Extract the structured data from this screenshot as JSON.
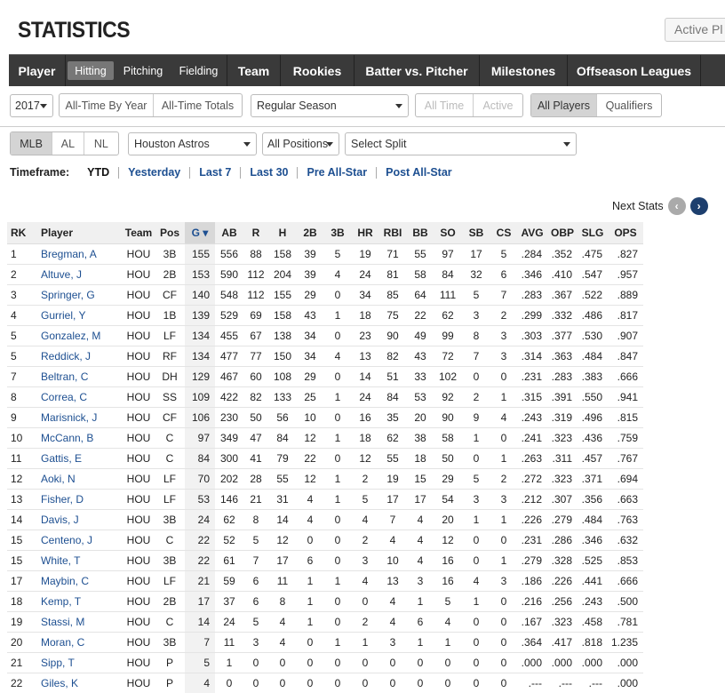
{
  "page_title": "STATISTICS",
  "active_players_label": "Active Pl",
  "nav": {
    "main_left": "Player",
    "sub_tabs": [
      "Hitting",
      "Pitching",
      "Fielding"
    ],
    "main_tabs": [
      "Team",
      "Rookies",
      "Batter vs. Pitcher",
      "Milestones",
      "Offseason Leagues"
    ]
  },
  "controls": {
    "season": "2017",
    "all_time_by_year": "All-Time By Year",
    "all_time_totals": "All-Time Totals",
    "game_type": "Regular Season",
    "all_time": "All Time",
    "active": "Active",
    "all_players": "All Players",
    "qualifiers": "Qualifiers",
    "mlb": "MLB",
    "al": "AL",
    "nl": "NL",
    "team": "Houston Astros",
    "positions": "All Positions",
    "split": "Select Split"
  },
  "timeframe": {
    "label": "Timeframe:",
    "options": [
      "YTD",
      "Yesterday",
      "Last 7",
      "Last 30",
      "Pre All-Star",
      "Post All-Star"
    ]
  },
  "next_stats": "Next Stats",
  "table": {
    "headers": [
      "RK",
      "Player",
      "Team",
      "Pos",
      "G ▾",
      "AB",
      "R",
      "H",
      "2B",
      "3B",
      "HR",
      "RBI",
      "BB",
      "SO",
      "SB",
      "CS",
      "AVG",
      "OBP",
      "SLG",
      "OPS"
    ],
    "rows": [
      [
        "1",
        "Bregman, A",
        "HOU",
        "3B",
        "155",
        "556",
        "88",
        "158",
        "39",
        "5",
        "19",
        "71",
        "55",
        "97",
        "17",
        "5",
        ".284",
        ".352",
        ".475",
        ".827"
      ],
      [
        "2",
        "Altuve, J",
        "HOU",
        "2B",
        "153",
        "590",
        "112",
        "204",
        "39",
        "4",
        "24",
        "81",
        "58",
        "84",
        "32",
        "6",
        ".346",
        ".410",
        ".547",
        ".957"
      ],
      [
        "3",
        "Springer, G",
        "HOU",
        "CF",
        "140",
        "548",
        "112",
        "155",
        "29",
        "0",
        "34",
        "85",
        "64",
        "111",
        "5",
        "7",
        ".283",
        ".367",
        ".522",
        ".889"
      ],
      [
        "4",
        "Gurriel, Y",
        "HOU",
        "1B",
        "139",
        "529",
        "69",
        "158",
        "43",
        "1",
        "18",
        "75",
        "22",
        "62",
        "3",
        "2",
        ".299",
        ".332",
        ".486",
        ".817"
      ],
      [
        "5",
        "Gonzalez, M",
        "HOU",
        "LF",
        "134",
        "455",
        "67",
        "138",
        "34",
        "0",
        "23",
        "90",
        "49",
        "99",
        "8",
        "3",
        ".303",
        ".377",
        ".530",
        ".907"
      ],
      [
        "5",
        "Reddick, J",
        "HOU",
        "RF",
        "134",
        "477",
        "77",
        "150",
        "34",
        "4",
        "13",
        "82",
        "43",
        "72",
        "7",
        "3",
        ".314",
        ".363",
        ".484",
        ".847"
      ],
      [
        "7",
        "Beltran, C",
        "HOU",
        "DH",
        "129",
        "467",
        "60",
        "108",
        "29",
        "0",
        "14",
        "51",
        "33",
        "102",
        "0",
        "0",
        ".231",
        ".283",
        ".383",
        ".666"
      ],
      [
        "8",
        "Correa, C",
        "HOU",
        "SS",
        "109",
        "422",
        "82",
        "133",
        "25",
        "1",
        "24",
        "84",
        "53",
        "92",
        "2",
        "1",
        ".315",
        ".391",
        ".550",
        ".941"
      ],
      [
        "9",
        "Marisnick, J",
        "HOU",
        "CF",
        "106",
        "230",
        "50",
        "56",
        "10",
        "0",
        "16",
        "35",
        "20",
        "90",
        "9",
        "4",
        ".243",
        ".319",
        ".496",
        ".815"
      ],
      [
        "10",
        "McCann, B",
        "HOU",
        "C",
        "97",
        "349",
        "47",
        "84",
        "12",
        "1",
        "18",
        "62",
        "38",
        "58",
        "1",
        "0",
        ".241",
        ".323",
        ".436",
        ".759"
      ],
      [
        "11",
        "Gattis, E",
        "HOU",
        "C",
        "84",
        "300",
        "41",
        "79",
        "22",
        "0",
        "12",
        "55",
        "18",
        "50",
        "0",
        "1",
        ".263",
        ".311",
        ".457",
        ".767"
      ],
      [
        "12",
        "Aoki, N",
        "HOU",
        "LF",
        "70",
        "202",
        "28",
        "55",
        "12",
        "1",
        "2",
        "19",
        "15",
        "29",
        "5",
        "2",
        ".272",
        ".323",
        ".371",
        ".694"
      ],
      [
        "13",
        "Fisher, D",
        "HOU",
        "LF",
        "53",
        "146",
        "21",
        "31",
        "4",
        "1",
        "5",
        "17",
        "17",
        "54",
        "3",
        "3",
        ".212",
        ".307",
        ".356",
        ".663"
      ],
      [
        "14",
        "Davis, J",
        "HOU",
        "3B",
        "24",
        "62",
        "8",
        "14",
        "4",
        "0",
        "4",
        "7",
        "4",
        "20",
        "1",
        "1",
        ".226",
        ".279",
        ".484",
        ".763"
      ],
      [
        "15",
        "Centeno, J",
        "HOU",
        "C",
        "22",
        "52",
        "5",
        "12",
        "0",
        "0",
        "2",
        "4",
        "4",
        "12",
        "0",
        "0",
        ".231",
        ".286",
        ".346",
        ".632"
      ],
      [
        "15",
        "White, T",
        "HOU",
        "3B",
        "22",
        "61",
        "7",
        "17",
        "6",
        "0",
        "3",
        "10",
        "4",
        "16",
        "0",
        "1",
        ".279",
        ".328",
        ".525",
        ".853"
      ],
      [
        "17",
        "Maybin, C",
        "HOU",
        "LF",
        "21",
        "59",
        "6",
        "11",
        "1",
        "1",
        "4",
        "13",
        "3",
        "16",
        "4",
        "3",
        ".186",
        ".226",
        ".441",
        ".666"
      ],
      [
        "18",
        "Kemp, T",
        "HOU",
        "2B",
        "17",
        "37",
        "6",
        "8",
        "1",
        "0",
        "0",
        "4",
        "1",
        "5",
        "1",
        "0",
        ".216",
        ".256",
        ".243",
        ".500"
      ],
      [
        "19",
        "Stassi, M",
        "HOU",
        "C",
        "14",
        "24",
        "5",
        "4",
        "1",
        "0",
        "2",
        "4",
        "6",
        "4",
        "0",
        "0",
        ".167",
        ".323",
        ".458",
        ".781"
      ],
      [
        "20",
        "Moran, C",
        "HOU",
        "3B",
        "7",
        "11",
        "3",
        "4",
        "0",
        "1",
        "1",
        "3",
        "1",
        "1",
        "0",
        "0",
        ".364",
        ".417",
        ".818",
        "1.235"
      ],
      [
        "21",
        "Sipp, T",
        "HOU",
        "P",
        "5",
        "1",
        "0",
        "0",
        "0",
        "0",
        "0",
        "0",
        "0",
        "0",
        "0",
        "0",
        ".000",
        ".000",
        ".000",
        ".000"
      ],
      [
        "22",
        "Giles, K",
        "HOU",
        "P",
        "4",
        "0",
        "0",
        "0",
        "0",
        "0",
        "0",
        "0",
        "0",
        "0",
        "0",
        "0",
        ".---",
        ".---",
        ".---",
        ".000"
      ]
    ]
  },
  "colors": {
    "link": "#1d4f91",
    "nav_bg": "#3a3a3a",
    "sorted_header": "#d8d8d8"
  }
}
